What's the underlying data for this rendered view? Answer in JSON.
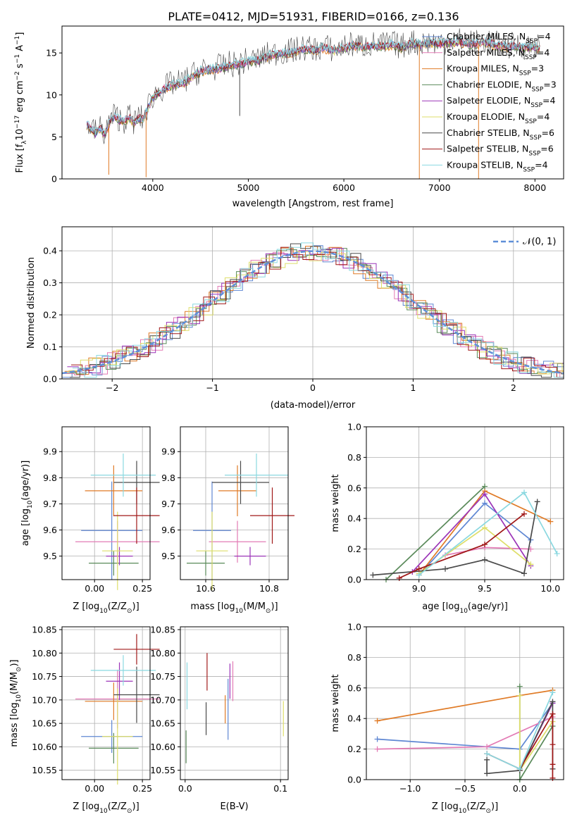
{
  "figure_title": "PLATE=0412, MJD=51931, FIBERID=0166, z=0.136",
  "colors": {
    "Chabrier MILES": "#5f87d3",
    "Salpeter MILES": "#e37bb5",
    "Kroupa MILES": "#e07b27",
    "Chabrier ELODIE": "#5a8a5a",
    "Salpeter ELODIE": "#9b34b8",
    "Kroupa ELODIE": "#dede6a",
    "Chabrier STELIB": "#4a4a4a",
    "Salpeter STELIB": "#a01818",
    "Kroupa STELIB": "#8ad8e0",
    "normal": "#5f8fd8"
  },
  "chart_data": [
    {
      "id": "spectrum",
      "type": "line",
      "title": "PLATE=0412, MJD=51931, FIBERID=0166, z=0.136",
      "xlabel": "wavelength [Angstrom, rest frame]",
      "ylabel_parts": [
        "Flux [f",
        "λ",
        "10",
        "−17",
        " erg cm",
        "−2",
        " s",
        "−1",
        " A",
        "−1",
        "]"
      ],
      "xlim": [
        3050,
        8300
      ],
      "ylim": [
        0,
        18.2
      ],
      "xticks": [
        4000,
        5000,
        6000,
        7000,
        8000
      ],
      "yticks": [
        0,
        5,
        10,
        15
      ],
      "grid": false,
      "legend_position": "top-right",
      "legend": [
        {
          "name": "Chabrier MILES",
          "nssp": "4"
        },
        {
          "name": "Salpeter MILES",
          "nssp": "4"
        },
        {
          "name": "Kroupa MILES",
          "nssp": "3"
        },
        {
          "name": "Chabrier ELODIE",
          "nssp": "3"
        },
        {
          "name": "Salpeter ELODIE",
          "nssp": "4"
        },
        {
          "name": "Kroupa ELODIE",
          "nssp": "4"
        },
        {
          "name": "Chabrier STELIB",
          "nssp": "6"
        },
        {
          "name": "Salpeter STELIB",
          "nssp": "6"
        },
        {
          "name": "Kroupa STELIB",
          "nssp": "4"
        }
      ],
      "series": [
        {
          "name": "Chabrier STELIB (data)",
          "x": [
            3300,
            3350,
            3400,
            3450,
            3500,
            3550,
            3600,
            3650,
            3700,
            3750,
            3800,
            3850,
            3900,
            3950,
            4000,
            4100,
            4200,
            4300,
            4400,
            4500,
            4600,
            4700,
            4800,
            4900,
            5000,
            5100,
            5200,
            5300,
            5400,
            5500,
            5600,
            5700,
            5800,
            5900,
            6000,
            6100,
            6200,
            6300,
            6400,
            6500,
            6600,
            6700,
            6800,
            6900,
            7000,
            7100,
            7200,
            7300,
            7400,
            7500,
            7600,
            7700,
            7800,
            7900,
            8000,
            8050
          ],
          "y": [
            6.6,
            6.0,
            5.5,
            6.0,
            5.2,
            6.8,
            7.5,
            7.0,
            6.8,
            7.4,
            6.6,
            7.2,
            7.0,
            8.5,
            9.7,
            10.6,
            11.2,
            11.3,
            12.1,
            12.8,
            13.0,
            13.2,
            13.5,
            13.6,
            14.0,
            14.1,
            14.6,
            14.9,
            15.0,
            15.2,
            15.5,
            15.3,
            15.6,
            15.2,
            15.6,
            15.9,
            15.7,
            15.9,
            15.8,
            16.0,
            15.6,
            16.2,
            16.0,
            16.2,
            16.1,
            16.3,
            16.4,
            16.0,
            16.1,
            16.3,
            15.9,
            15.7,
            15.8,
            15.6,
            15.8,
            15.5
          ]
        },
        {
          "name": "Kroupa STELIB (model)",
          "x": [
            3300,
            3400,
            3500,
            3600,
            3700,
            3800,
            3900,
            3950,
            4000,
            4100,
            4200,
            4300,
            4400,
            4500,
            4600,
            4700,
            4800,
            4900,
            5000,
            5100,
            5200,
            5300,
            5400,
            5500,
            5600,
            5700,
            5800,
            5900,
            6000,
            6100,
            6200,
            6300,
            6400,
            6500,
            6600,
            6700,
            6800,
            6900,
            7000,
            7100,
            7200,
            7300,
            7400,
            7500,
            7600,
            7700,
            7800,
            7900,
            8000,
            8050
          ],
          "y": [
            6.0,
            5.4,
            5.7,
            6.8,
            6.9,
            6.5,
            6.7,
            8.0,
            9.6,
            10.4,
            11.0,
            11.4,
            12.0,
            12.6,
            13.0,
            13.2,
            13.4,
            13.7,
            13.9,
            14.2,
            14.5,
            14.8,
            15.0,
            15.1,
            15.3,
            15.4,
            15.5,
            15.4,
            15.6,
            15.7,
            15.8,
            15.8,
            15.9,
            15.9,
            16.0,
            16.0,
            16.1,
            16.1,
            16.1,
            16.2,
            16.2,
            16.1,
            16.1,
            16.0,
            15.9,
            15.8,
            15.7,
            15.6,
            15.5,
            15.4
          ]
        }
      ]
    },
    {
      "id": "residuals",
      "type": "line",
      "xlabel": "(data-model)/error",
      "ylabel": "Normed distribution",
      "xlim": [
        -2.5,
        2.5
      ],
      "ylim": [
        0,
        0.475
      ],
      "xticks": [
        -2,
        -1,
        0,
        1,
        2
      ],
      "yticks": [
        0.0,
        0.1,
        0.2,
        0.3,
        0.4
      ],
      "grid": true,
      "legend_position": "top-right",
      "legend": [
        {
          "name": "𝒩(0, 1)"
        }
      ],
      "series": [
        {
          "name": "𝒩(0, 1)",
          "x": [
            -2.5,
            -2.0,
            -1.5,
            -1.0,
            -0.5,
            0.0,
            0.5,
            1.0,
            1.5,
            2.0,
            2.5
          ],
          "y": [
            0.018,
            0.054,
            0.13,
            0.242,
            0.352,
            0.399,
            0.352,
            0.242,
            0.13,
            0.054,
            0.018
          ]
        }
      ]
    },
    {
      "id": "age-vs-z",
      "type": "scatter",
      "xlabel_parts": [
        "Z [log",
        "10",
        "(Z/Z",
        "⊙",
        ")]"
      ],
      "ylabel_parts": [
        "age  [log",
        "10",
        "(age/yr)]"
      ],
      "xlim": [
        -0.17,
        0.29
      ],
      "ylim": [
        9.41,
        9.995
      ],
      "xticks": [
        0.0,
        0.25
      ],
      "yticks": [
        9.5,
        9.6,
        9.7,
        9.8,
        9.9
      ],
      "grid": true,
      "points": [
        {
          "model": "Chabrier MILES",
          "x": 0.09,
          "xerr": 0.16,
          "y": 9.598,
          "yerr": 0.375
        },
        {
          "model": "Salpeter MILES",
          "x": 0.12,
          "xerr": 0.22,
          "y": 9.555,
          "yerr": 0.16
        },
        {
          "model": "Kroupa MILES",
          "x": 0.1,
          "xerr": 0.15,
          "y": 9.75,
          "yerr": 0.195
        },
        {
          "model": "Chabrier ELODIE",
          "x": 0.1,
          "xerr": 0.13,
          "y": 9.473,
          "yerr": 0.095
        },
        {
          "model": "Salpeter ELODIE",
          "x": 0.13,
          "xerr": 0.07,
          "y": 9.5,
          "yerr": 0.07
        },
        {
          "model": "Kroupa ELODIE",
          "x": 0.12,
          "xerr": 0.08,
          "y": 9.52,
          "yerr": 0.3
        },
        {
          "model": "Chabrier STELIB",
          "x": 0.22,
          "xerr": 0.12,
          "y": 9.782,
          "yerr": 0.165
        },
        {
          "model": "Salpeter STELIB",
          "x": 0.22,
          "xerr": 0.12,
          "y": 9.655,
          "yerr": 0.215
        },
        {
          "model": "Kroupa STELIB",
          "x": 0.15,
          "xerr": 0.17,
          "y": 9.81,
          "yerr": 0.165
        }
      ]
    },
    {
      "id": "age-vs-mass",
      "type": "scatter",
      "xlabel_parts": [
        "mass [log",
        "10",
        "(M/M",
        "⊙",
        ")]"
      ],
      "xlim": [
        10.52,
        10.86
      ],
      "ylim": [
        9.41,
        9.995
      ],
      "xticks": [
        10.6,
        10.8
      ],
      "yticks": [
        9.5,
        9.6,
        9.7,
        9.8,
        9.9
      ],
      "grid": true,
      "points": [
        {
          "model": "Chabrier MILES",
          "x": 10.62,
          "xerr": 0.06,
          "y": 9.598,
          "yerr": 0.375
        },
        {
          "model": "Salpeter MILES",
          "x": 10.7,
          "xerr": 0.09,
          "y": 9.555,
          "yerr": 0.16
        },
        {
          "model": "Kroupa MILES",
          "x": 10.7,
          "xerr": 0.06,
          "y": 9.75,
          "yerr": 0.195
        },
        {
          "model": "Chabrier ELODIE",
          "x": 10.6,
          "xerr": 0.06,
          "y": 9.473,
          "yerr": 0.095
        },
        {
          "model": "Salpeter ELODIE",
          "x": 10.74,
          "xerr": 0.05,
          "y": 9.5,
          "yerr": 0.07
        },
        {
          "model": "Kroupa ELODIE",
          "x": 10.62,
          "xerr": 0.05,
          "y": 9.52,
          "yerr": 0.3
        },
        {
          "model": "Chabrier STELIB",
          "x": 10.71,
          "xerr": 0.09,
          "y": 9.782,
          "yerr": 0.165
        },
        {
          "model": "Salpeter STELIB",
          "x": 10.81,
          "xerr": 0.07,
          "y": 9.655,
          "yerr": 0.215
        },
        {
          "model": "Kroupa STELIB",
          "x": 10.76,
          "xerr": 0.1,
          "y": 9.81,
          "yerr": 0.165
        }
      ]
    },
    {
      "id": "weight-vs-age",
      "type": "line",
      "xlabel_parts": [
        "age  [log",
        "10",
        "(age/yr)]"
      ],
      "ylabel": "mass weight",
      "xlim": [
        8.6,
        10.1
      ],
      "ylim": [
        0,
        1.0
      ],
      "xticks": [
        9.0,
        9.5,
        10.0
      ],
      "yticks": [
        0.0,
        0.2,
        0.4,
        0.6,
        0.8,
        1.0
      ],
      "grid": true,
      "series": [
        {
          "name": "Chabrier MILES",
          "x": [
            9.0,
            9.5,
            9.85
          ],
          "y": [
            0.03,
            0.5,
            0.26
          ]
        },
        {
          "name": "Salpeter MILES",
          "x": [
            9.2,
            9.5,
            9.85
          ],
          "y": [
            0.16,
            0.21,
            0.2
          ]
        },
        {
          "name": "Kroupa MILES",
          "x": [
            9.0,
            9.5,
            10.0
          ],
          "y": [
            0.03,
            0.58,
            0.38
          ]
        },
        {
          "name": "Chabrier ELODIE",
          "x": [
            8.75,
            9.5
          ],
          "y": [
            0.0,
            0.61
          ]
        },
        {
          "name": "Salpeter ELODIE",
          "x": [
            8.95,
            9.5,
            9.85
          ],
          "y": [
            0.05,
            0.56,
            0.09
          ]
        },
        {
          "name": "Kroupa ELODIE",
          "x": [
            9.0,
            9.5,
            9.85
          ],
          "y": [
            0.04,
            0.34,
            0.1
          ]
        },
        {
          "name": "Chabrier STELIB",
          "x": [
            8.65,
            9.2,
            9.5,
            9.8,
            9.9
          ],
          "y": [
            0.03,
            0.07,
            0.13,
            0.04,
            0.51
          ]
        },
        {
          "name": "Salpeter STELIB",
          "x": [
            8.85,
            9.0,
            9.5,
            9.8
          ],
          "y": [
            0.01,
            0.07,
            0.23,
            0.43
          ]
        },
        {
          "name": "Kroupa STELIB",
          "x": [
            9.0,
            9.8,
            10.05
          ],
          "y": [
            0.03,
            0.57,
            0.17
          ]
        }
      ]
    },
    {
      "id": "mass-vs-z",
      "type": "scatter",
      "xlabel_parts": [
        "Z [log",
        "10",
        "(Z/Z",
        "⊙",
        ")]"
      ],
      "ylabel_parts": [
        "mass [log",
        "10",
        "(M/M",
        "⊙",
        ")]"
      ],
      "xlim": [
        -0.17,
        0.29
      ],
      "ylim": [
        10.53,
        10.856
      ],
      "xticks": [
        0.0,
        0.25
      ],
      "yticks": [
        10.55,
        10.6,
        10.65,
        10.7,
        10.75,
        10.8,
        10.85
      ],
      "grid": true,
      "points": [
        {
          "model": "Chabrier MILES",
          "x": 0.09,
          "xerr": 0.16,
          "y": 10.622,
          "yerr": 0.07
        },
        {
          "model": "Salpeter MILES",
          "x": 0.12,
          "xerr": 0.22,
          "y": 10.702,
          "yerr": 0.125
        },
        {
          "model": "Kroupa MILES",
          "x": 0.1,
          "xerr": 0.15,
          "y": 10.697,
          "yerr": 0.08
        },
        {
          "model": "Chabrier ELODIE",
          "x": 0.1,
          "xerr": 0.13,
          "y": 10.597,
          "yerr": 0.065
        },
        {
          "model": "Salpeter ELODIE",
          "x": 0.13,
          "xerr": 0.07,
          "y": 10.74,
          "yerr": 0.08
        },
        {
          "model": "Kroupa ELODIE",
          "x": 0.12,
          "xerr": 0.08,
          "y": 10.622,
          "yerr": 0.205
        },
        {
          "model": "Chabrier STELIB",
          "x": 0.22,
          "xerr": 0.12,
          "y": 10.711,
          "yerr": 0.12
        },
        {
          "model": "Salpeter STELIB",
          "x": 0.22,
          "xerr": 0.12,
          "y": 10.808,
          "yerr": 0.065
        },
        {
          "model": "Kroupa STELIB",
          "x": 0.15,
          "xerr": 0.17,
          "y": 10.763,
          "yerr": 0.065
        }
      ]
    },
    {
      "id": "mass-vs-ebv",
      "type": "scatter",
      "xlabel": "E(B-V)",
      "xlim": [
        -0.005,
        0.108
      ],
      "ylim": [
        10.53,
        10.856
      ],
      "xticks": [
        0.0,
        0.1
      ],
      "yticks": [
        10.55,
        10.6,
        10.65,
        10.7,
        10.75,
        10.8,
        10.85
      ],
      "grid": true,
      "points": [
        {
          "model": "Chabrier MILES",
          "x": 0.045,
          "y": 10.68,
          "yerr": 0.13
        },
        {
          "model": "Salpeter MILES",
          "x": 0.05,
          "y": 10.74,
          "yerr": 0.085
        },
        {
          "model": "Kroupa MILES",
          "x": 0.042,
          "y": 10.68,
          "yerr": 0.06
        },
        {
          "model": "Chabrier ELODIE",
          "x": 0.001,
          "y": 10.6,
          "yerr": 0.07
        },
        {
          "model": "Salpeter ELODIE",
          "x": 0.047,
          "y": 10.74,
          "yerr": 0.075
        },
        {
          "model": "Kroupa ELODIE",
          "x": 0.103,
          "y": 10.66,
          "yerr": 0.075
        },
        {
          "model": "Chabrier STELIB",
          "x": 0.022,
          "y": 10.66,
          "yerr": 0.07
        },
        {
          "model": "Salpeter STELIB",
          "x": 0.023,
          "y": 10.76,
          "yerr": 0.08
        },
        {
          "model": "Kroupa STELIB",
          "x": 0.002,
          "y": 10.73,
          "yerr": 0.1
        }
      ]
    },
    {
      "id": "weight-vs-z",
      "type": "line",
      "xlabel_parts": [
        "Z [log",
        "10",
        "(Z/Z",
        "⊙",
        ")]"
      ],
      "ylabel": "mass weight",
      "xlim": [
        -1.4,
        0.4
      ],
      "ylim": [
        0,
        1.0
      ],
      "xticks": [
        -1.0,
        -0.5,
        0.0
      ],
      "yticks": [
        0.0,
        0.2,
        0.4,
        0.6,
        0.8,
        1.0
      ],
      "grid": true,
      "series": [
        {
          "name": "Chabrier MILES",
          "x": [
            -1.3,
            0.0,
            0.3
          ],
          "y": [
            0.265,
            0.2,
            0.5
          ]
        },
        {
          "name": "Salpeter MILES",
          "x": [
            -1.3,
            -0.3,
            0.3
          ],
          "y": [
            0.2,
            0.215,
            0.41
          ]
        },
        {
          "name": "Kroupa MILES",
          "x": [
            -1.3,
            0.0,
            0.3
          ],
          "y": [
            0.385,
            0.55,
            0.585
          ]
        },
        {
          "name": "Chabrier ELODIE",
          "x": [
            0.0,
            0.0,
            0.3
          ],
          "y": [
            0.61,
            0.0,
            0.35
          ]
        },
        {
          "name": "Salpeter ELODIE",
          "x": [
            0.0,
            0.3
          ],
          "y": [
            0.06,
            0.5
          ]
        },
        {
          "name": "Kroupa ELODIE",
          "x": [
            0.0,
            0.0,
            0.3
          ],
          "y": [
            0.55,
            0.06,
            0.38
          ]
        },
        {
          "name": "Chabrier STELIB",
          "x": [
            -0.3,
            -0.3,
            0.0,
            0.3,
            0.3
          ],
          "y": [
            0.13,
            0.04,
            0.06,
            0.51,
            0.07
          ]
        },
        {
          "name": "Salpeter STELIB",
          "x": [
            -0.3,
            0.0,
            0.3,
            0.3,
            0.3,
            0.3
          ],
          "y": [
            0.17,
            0.07,
            0.43,
            0.23,
            0.1,
            0.01
          ]
        },
        {
          "name": "Kroupa STELIB",
          "x": [
            -0.3,
            0.0,
            0.3
          ],
          "y": [
            0.17,
            0.07,
            0.57
          ]
        }
      ]
    }
  ]
}
